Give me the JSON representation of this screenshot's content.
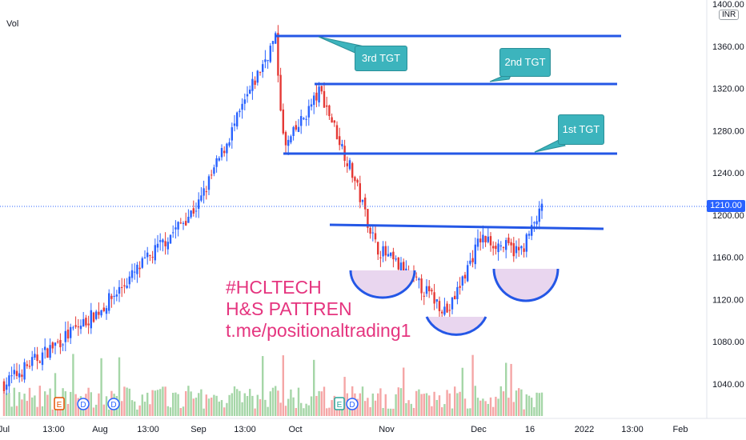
{
  "top_left": {
    "indicator": "Vol"
  },
  "currency": "INR",
  "last_price": "1210.00",
  "annotation": {
    "line1": "#HCLTECH",
    "line2": "H&S PATTREN",
    "line3": "t.me/positionaltrading1"
  },
  "targets": [
    {
      "label": "3rd TGT",
      "price": 1370
    },
    {
      "label": "2nd TGT",
      "price": 1323
    },
    {
      "label": "1st TGT",
      "price": 1257
    }
  ],
  "neckline_price": 1188,
  "chart_data": {
    "type": "candlestick",
    "y_axis": {
      "ticks": [
        "1040.00",
        "1080.00",
        "1120.00",
        "1160.00",
        "1200.00",
        "1240.00",
        "1280.00",
        "1320.00",
        "1360.00",
        "1400.00"
      ],
      "range": [
        1005,
        1410
      ]
    },
    "x_axis": {
      "ticks": [
        "Jul",
        "13:00",
        "Aug",
        "13:00",
        "Sep",
        "13:00",
        "Oct",
        "Nov",
        "Dec",
        "16",
        "2022",
        "13:00",
        "Feb"
      ]
    },
    "close_path": [
      [
        "Jul",
        1040
      ],
      [
        "Aug",
        1110
      ],
      [
        "Sep",
        1210
      ],
      [
        "mid-Sep",
        1330
      ],
      [
        "late-Sep",
        1368
      ],
      [
        "Oct",
        1262
      ],
      [
        "early-Oct",
        1318
      ],
      [
        "mid-Oct",
        1240
      ],
      [
        "Nov",
        1170
      ],
      [
        "mid-Nov",
        1150
      ],
      [
        "late-Nov",
        1108
      ],
      [
        "Dec",
        1178
      ],
      [
        "16",
        1165
      ],
      [
        "last",
        1210
      ]
    ],
    "patterns": [
      "left shoulder",
      "head",
      "right shoulder"
    ],
    "event_markers": [
      "E",
      "D",
      "D",
      "E",
      "D"
    ]
  }
}
